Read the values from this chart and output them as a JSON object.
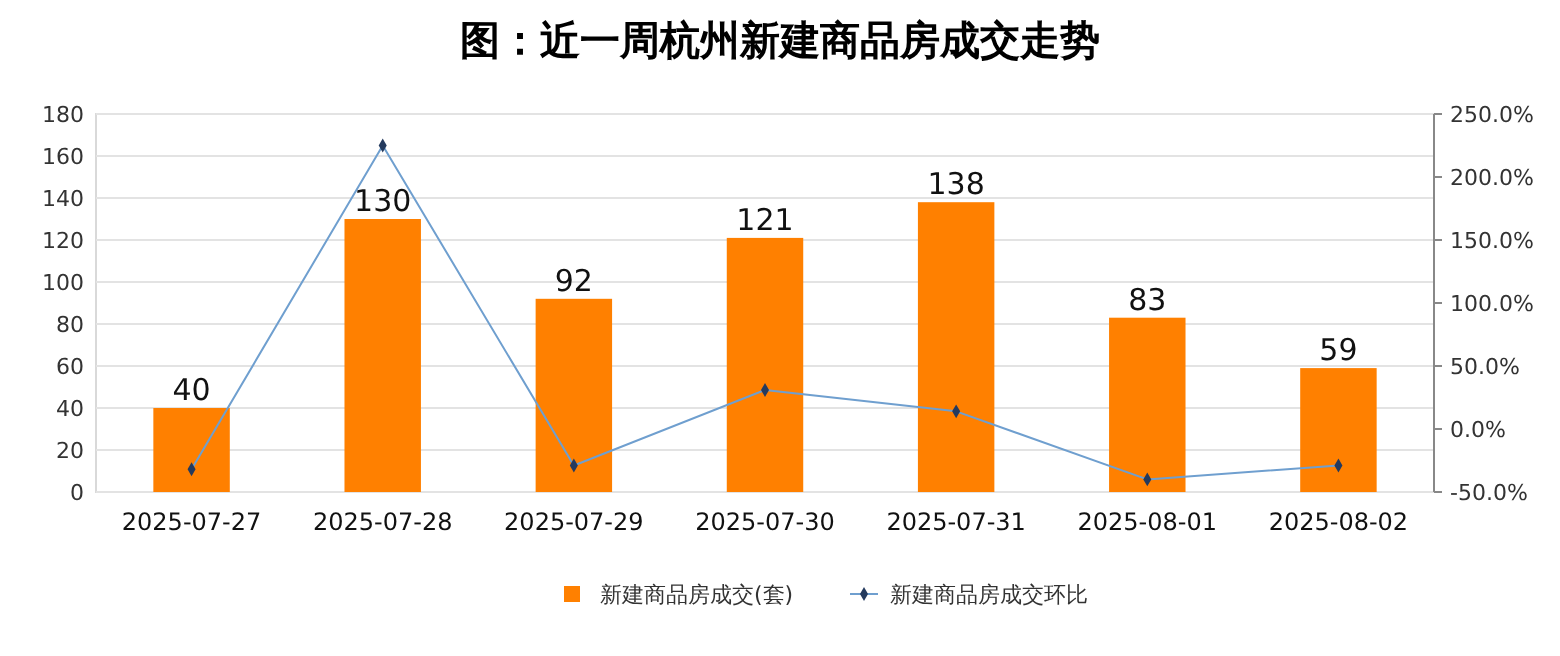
{
  "chart_data": {
    "type": "bar",
    "title": "图：近一周杭州新建商品房成交走势",
    "categories": [
      "2025-07-27",
      "2025-07-28",
      "2025-07-29",
      "2025-07-30",
      "2025-07-31",
      "2025-08-01",
      "2025-08-02"
    ],
    "series": [
      {
        "name": "新建商品房成交(套)",
        "color": "#ff8000",
        "values": [
          40,
          130,
          92,
          121,
          138,
          83,
          59
        ],
        "value_labels": [
          "40",
          "130",
          "92",
          "121",
          "138",
          "83",
          "59"
        ]
      },
      {
        "name": "新建商品房成交环比",
        "type": "line",
        "axis": "y2",
        "color": "#6f9fcf",
        "marker": "diamond",
        "values": [
          -32,
          225,
          -29,
          31,
          14,
          -40,
          -29
        ]
      }
    ],
    "ylim": [
      0,
      180
    ],
    "yticks": [
      0,
      20,
      40,
      60,
      80,
      100,
      120,
      140,
      160,
      180
    ],
    "y2lim": [
      -50,
      250
    ],
    "y2ticks": [
      {
        "value": -50,
        "label": "-50.0%"
      },
      {
        "value": 0,
        "label": "0.0%"
      },
      {
        "value": 50,
        "label": "50.0%"
      },
      {
        "value": 100,
        "label": "100.0%"
      },
      {
        "value": 150,
        "label": "150.0%"
      },
      {
        "value": 200,
        "label": "200.0%"
      },
      {
        "value": 250,
        "label": "250.0%"
      }
    ],
    "grid": "y",
    "legend": "bottom"
  }
}
